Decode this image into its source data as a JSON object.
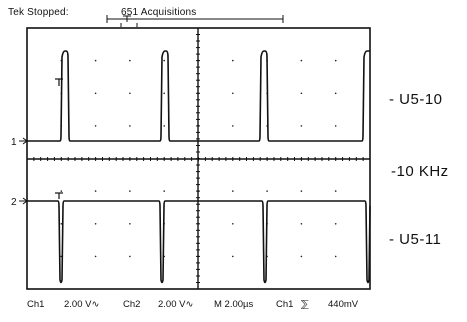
{
  "header": {
    "status": "Tek Stopped:",
    "acquisitions": "651 Acquisitions"
  },
  "right_labels": {
    "ch1": "- U5-10",
    "freq": "-10  KHz",
    "ch2": "- U5-11"
  },
  "channel_markers": {
    "ch1": "1",
    "ch2": "2"
  },
  "bottom_bar": {
    "ch1_label": "Ch1",
    "ch1_scale": "2.00 V∿",
    "ch2_label": "Ch2",
    "ch2_scale": "2.00 V∿",
    "timebase": "M 2.00µs",
    "trigger_source": "Ch1",
    "trigger_slope": "⅀",
    "trigger_level": "440mV"
  },
  "colors": {
    "trace": "#111111",
    "grid": "#222222",
    "background": "#ffffff"
  }
}
